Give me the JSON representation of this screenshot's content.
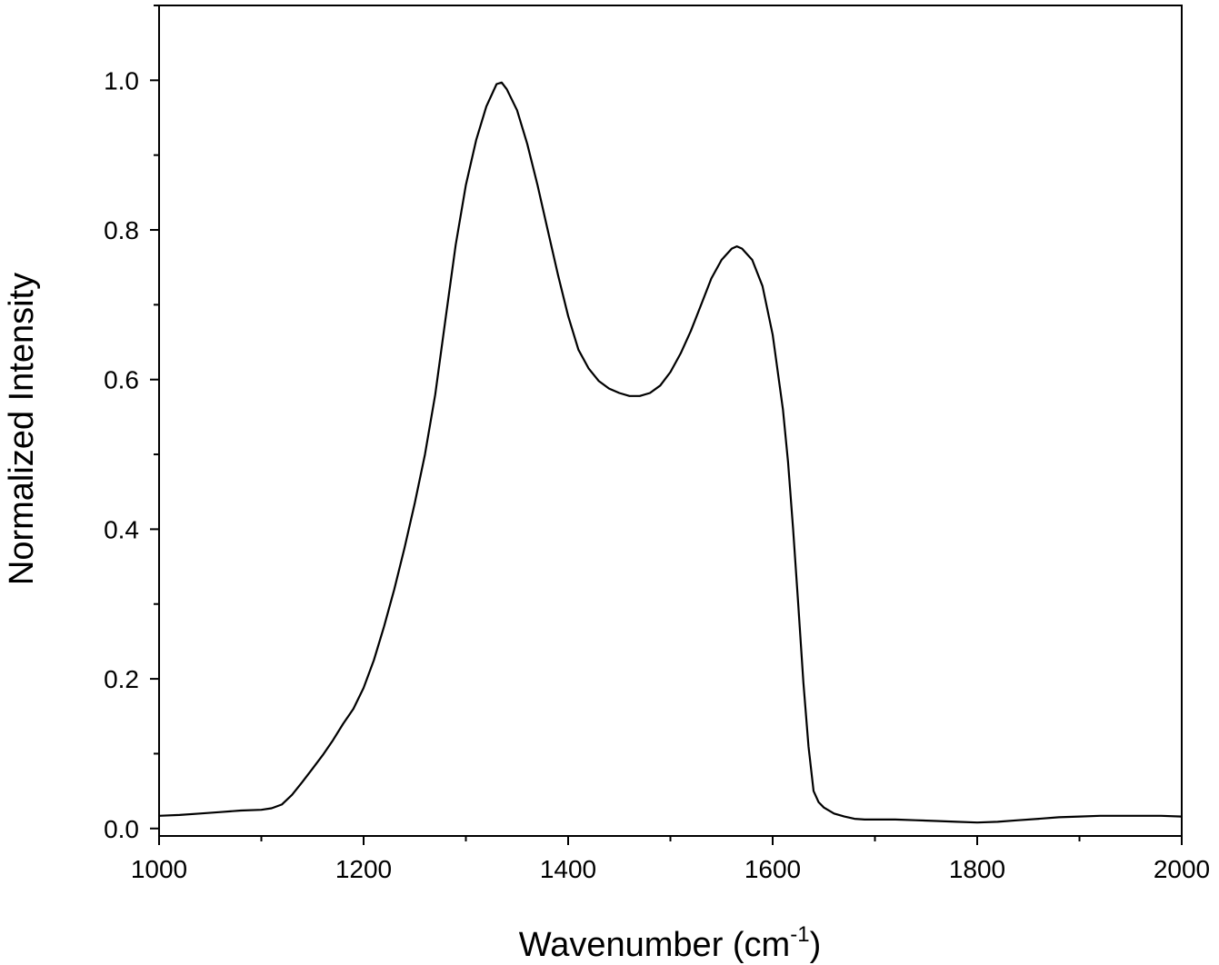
{
  "chart_data": {
    "type": "line",
    "title": "",
    "xlabel": "Wavenumber (cm",
    "xlabel_superscript": "-1",
    "xlabel_suffix": ")",
    "ylabel": "Normalized Intensity",
    "xlim": [
      1000,
      2000
    ],
    "ylim": [
      -0.01,
      1.1
    ],
    "x_ticks": [
      1000,
      1200,
      1400,
      1600,
      1800,
      2000
    ],
    "x_tick_labels": [
      "1000",
      "1200",
      "1400",
      "1600",
      "1800",
      "2000"
    ],
    "x_minor_step": 100,
    "y_ticks": [
      0.0,
      0.2,
      0.4,
      0.6,
      0.8,
      1.0
    ],
    "y_tick_labels": [
      "0.0",
      "0.2",
      "0.4",
      "0.6",
      "0.8",
      "1.0"
    ],
    "y_minor_step": 0.1,
    "grid": false,
    "legend": "none",
    "line_color": "#000000",
    "series": [
      {
        "x": [
          1000,
          1020,
          1040,
          1060,
          1080,
          1100,
          1110,
          1120,
          1130,
          1140,
          1150,
          1160,
          1170,
          1180,
          1190,
          1200,
          1210,
          1220,
          1230,
          1240,
          1250,
          1260,
          1270,
          1280,
          1290,
          1300,
          1310,
          1320,
          1330,
          1335,
          1340,
          1350,
          1360,
          1370,
          1380,
          1390,
          1400,
          1410,
          1420,
          1430,
          1440,
          1450,
          1460,
          1470,
          1480,
          1490,
          1500,
          1510,
          1520,
          1530,
          1540,
          1550,
          1560,
          1565,
          1570,
          1580,
          1590,
          1600,
          1610,
          1615,
          1620,
          1625,
          1630,
          1635,
          1640,
          1645,
          1650,
          1660,
          1670,
          1680,
          1690,
          1700,
          1720,
          1740,
          1760,
          1780,
          1800,
          1820,
          1840,
          1860,
          1880,
          1900,
          1920,
          1940,
          1960,
          1980,
          2000
        ],
        "y": [
          0.017,
          0.018,
          0.02,
          0.022,
          0.024,
          0.025,
          0.027,
          0.032,
          0.045,
          0.062,
          0.08,
          0.098,
          0.118,
          0.14,
          0.16,
          0.188,
          0.225,
          0.27,
          0.32,
          0.375,
          0.435,
          0.5,
          0.58,
          0.68,
          0.78,
          0.86,
          0.92,
          0.965,
          0.995,
          0.997,
          0.988,
          0.96,
          0.915,
          0.86,
          0.8,
          0.74,
          0.685,
          0.64,
          0.615,
          0.598,
          0.588,
          0.582,
          0.578,
          0.578,
          0.582,
          0.592,
          0.61,
          0.635,
          0.665,
          0.7,
          0.735,
          0.76,
          0.775,
          0.778,
          0.775,
          0.76,
          0.725,
          0.66,
          0.56,
          0.49,
          0.4,
          0.3,
          0.195,
          0.11,
          0.05,
          0.035,
          0.028,
          0.02,
          0.016,
          0.013,
          0.012,
          0.012,
          0.012,
          0.011,
          0.01,
          0.009,
          0.008,
          0.009,
          0.011,
          0.013,
          0.015,
          0.016,
          0.017,
          0.017,
          0.017,
          0.017,
          0.016
        ]
      }
    ]
  }
}
